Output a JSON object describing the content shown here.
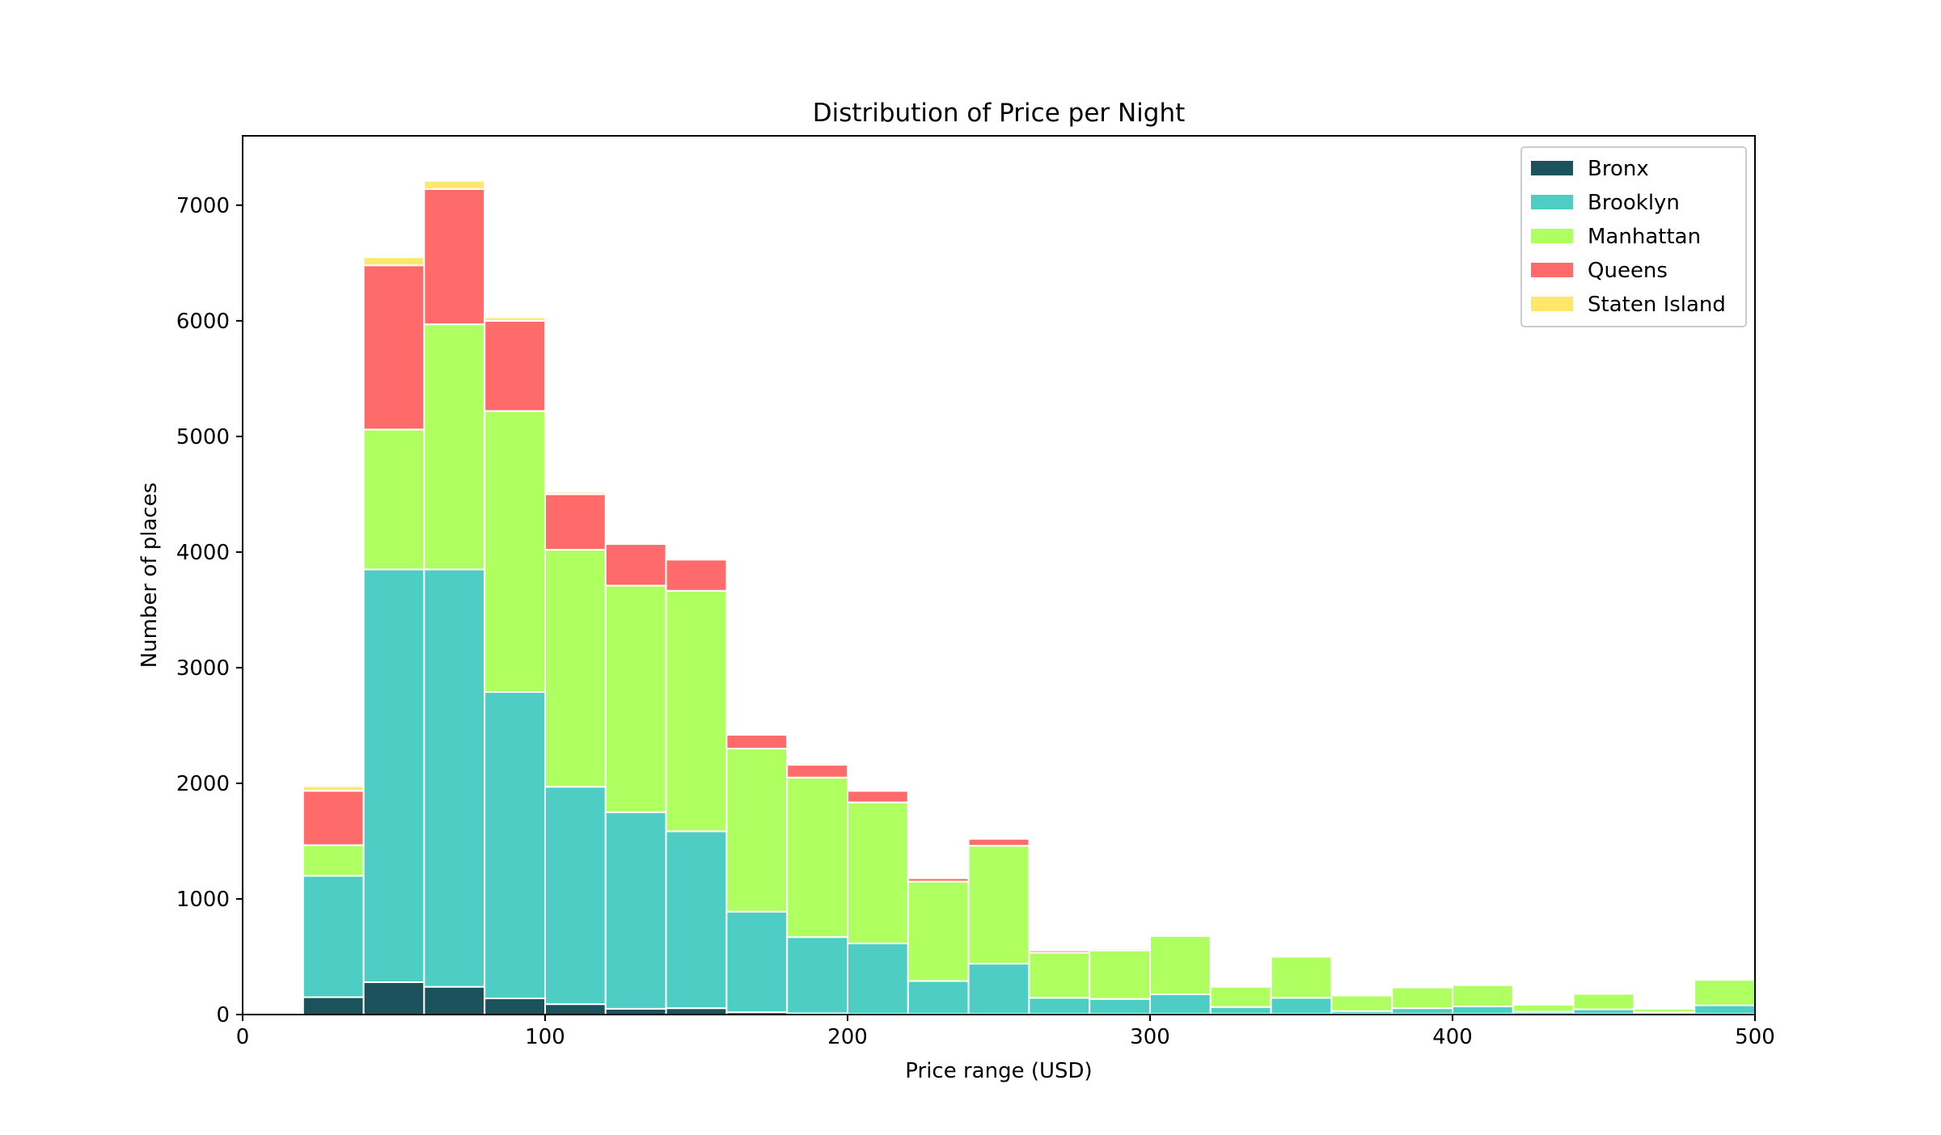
{
  "chart_data": {
    "type": "bar",
    "stacked": true,
    "histogram": true,
    "title": "Distribution of Price per Night",
    "xlabel": "Price range (USD)",
    "ylabel": "Number of places",
    "xlim": [
      0,
      500
    ],
    "ylim": [
      0,
      7600
    ],
    "xticks": [
      "0",
      "100",
      "200",
      "300",
      "400",
      "500"
    ],
    "yticks": [
      "0",
      "1000",
      "2000",
      "3000",
      "4000",
      "5000",
      "6000",
      "7000"
    ],
    "grid": false,
    "legend_position": "top-right",
    "bin_edges": [
      20,
      40,
      60,
      80,
      100,
      120,
      140,
      160,
      180,
      200,
      220,
      240,
      260,
      280,
      300,
      320,
      340,
      360,
      380,
      400,
      420,
      440,
      460,
      480,
      500
    ],
    "series": [
      {
        "name": "Bronx",
        "color": "#1b525c",
        "values": [
          150,
          280,
          240,
          140,
          90,
          50,
          55,
          20,
          10,
          5,
          5,
          5,
          5,
          5,
          5,
          5,
          5,
          5,
          5,
          5,
          5,
          5,
          5,
          5
        ]
      },
      {
        "name": "Brooklyn",
        "color": "#4ecdc4",
        "values": [
          1050,
          3570,
          3610,
          2650,
          1880,
          1700,
          1530,
          870,
          660,
          610,
          285,
          435,
          140,
          130,
          170,
          60,
          140,
          25,
          50,
          65,
          20,
          40,
          15,
          75
        ]
      },
      {
        "name": "Manhattan",
        "color": "#b0ff61",
        "values": [
          265,
          1210,
          2120,
          2430,
          2050,
          1960,
          2080,
          1410,
          1380,
          1220,
          860,
          1020,
          390,
          420,
          505,
          175,
          355,
          135,
          180,
          185,
          60,
          135,
          30,
          220
        ]
      },
      {
        "name": "Queens",
        "color": "#ff6b6b",
        "values": [
          470,
          1420,
          1170,
          780,
          480,
          360,
          270,
          120,
          110,
          100,
          30,
          60,
          20,
          15,
          5,
          5,
          5,
          5,
          5,
          5,
          5,
          5,
          5,
          5
        ]
      },
      {
        "name": "Staten Island",
        "color": "#ffe66d",
        "values": [
          40,
          70,
          70,
          30,
          20,
          10,
          10,
          5,
          5,
          5,
          5,
          5,
          10,
          10,
          5,
          5,
          5,
          5,
          5,
          5,
          5,
          5,
          5,
          5
        ]
      }
    ]
  }
}
